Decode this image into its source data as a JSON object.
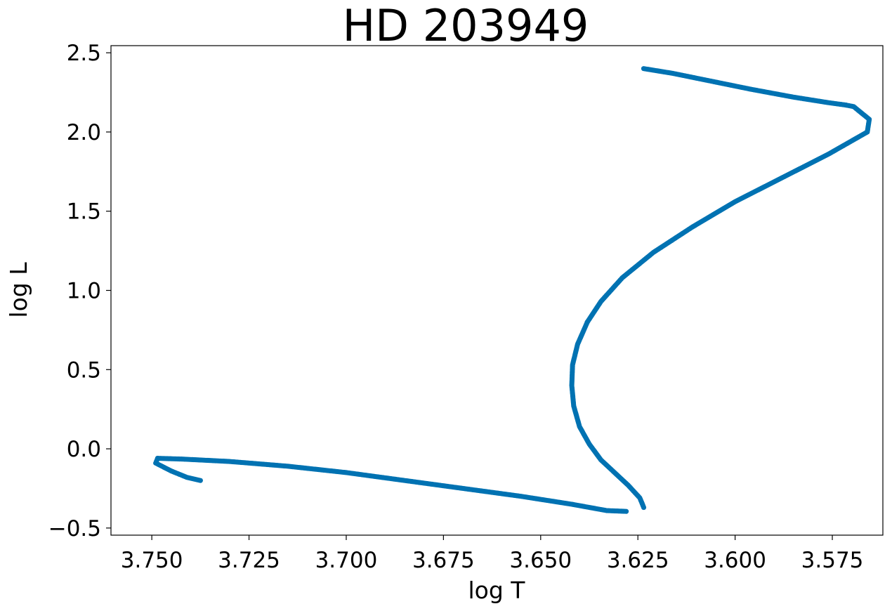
{
  "chart_data": {
    "type": "scatter",
    "title": "HD 203949",
    "xlabel": "log T",
    "ylabel": "log L",
    "xlim": [
      3.7605,
      3.562
    ],
    "ylim": [
      -0.545,
      2.545
    ],
    "x_inverted": true,
    "grid": false,
    "legend": "none",
    "marker_color": "#0072b2",
    "x_ticks": [
      "3.750",
      "3.725",
      "3.700",
      "3.675",
      "3.650",
      "3.625",
      "3.600",
      "3.575"
    ],
    "x_tick_values": [
      3.75,
      3.725,
      3.7,
      3.675,
      3.65,
      3.625,
      3.6,
      3.575
    ],
    "y_ticks": [
      "−0.5",
      "0.0",
      "0.5",
      "1.0",
      "1.5",
      "2.0",
      "2.5"
    ],
    "y_tick_values": [
      -0.5,
      0.0,
      0.5,
      1.0,
      1.5,
      2.0,
      2.5
    ],
    "series": [
      {
        "color": "#0072b2",
        "track_points": [
          [
            3.7375,
            -0.2
          ],
          [
            3.741,
            -0.17
          ],
          [
            3.745,
            -0.13
          ],
          [
            3.748,
            -0.085
          ],
          [
            3.7465,
            -0.06
          ],
          [
            3.742,
            -0.062
          ],
          [
            3.735,
            -0.07
          ],
          [
            3.727,
            -0.085
          ],
          [
            3.717,
            -0.105
          ],
          [
            3.707,
            -0.13
          ],
          [
            3.697,
            -0.16
          ],
          [
            3.687,
            -0.19
          ],
          [
            3.677,
            -0.22
          ],
          [
            3.667,
            -0.255
          ],
          [
            3.657,
            -0.29
          ],
          [
            3.647,
            -0.33
          ],
          [
            3.64,
            -0.36
          ],
          [
            3.633,
            -0.385
          ],
          [
            3.628,
            -0.395
          ],
          [
            3.6235,
            -0.37
          ],
          [
            3.6235,
            -0.32
          ],
          [
            3.626,
            -0.25
          ],
          [
            3.63,
            -0.17
          ],
          [
            3.634,
            -0.08
          ],
          [
            3.637,
            0.02
          ],
          [
            3.639,
            0.12
          ],
          [
            3.6405,
            0.22
          ],
          [
            3.6415,
            0.32
          ],
          [
            3.642,
            0.42
          ],
          [
            3.642,
            0.52
          ],
          [
            3.6415,
            0.62
          ],
          [
            3.6405,
            0.72
          ],
          [
            3.639,
            0.82
          ],
          [
            3.6365,
            0.92
          ],
          [
            3.633,
            1.02
          ],
          [
            3.6285,
            1.12
          ],
          [
            3.623,
            1.22
          ],
          [
            3.617,
            1.32
          ],
          [
            3.61,
            1.42
          ],
          [
            3.6025,
            1.52
          ],
          [
            3.5945,
            1.62
          ],
          [
            3.586,
            1.72
          ],
          [
            3.577,
            1.82
          ],
          [
            3.568,
            1.92
          ],
          [
            3.5645,
            2.0
          ],
          [
            3.567,
            2.06
          ],
          [
            3.569,
            2.12
          ],
          [
            3.57,
            2.165
          ],
          [
            3.574,
            2.18
          ],
          [
            3.58,
            2.2
          ],
          [
            3.588,
            2.235
          ],
          [
            3.596,
            2.27
          ],
          [
            3.604,
            2.31
          ],
          [
            3.612,
            2.35
          ],
          [
            3.619,
            2.38
          ],
          [
            3.625,
            2.4
          ]
        ],
        "values": [
          [
            3.7375,
            -0.2
          ],
          [
            3.741,
            -0.17
          ],
          [
            3.745,
            -0.13
          ],
          [
            3.748,
            -0.085
          ],
          [
            3.7465,
            -0.06
          ],
          [
            3.742,
            -0.062
          ],
          [
            3.735,
            -0.07
          ],
          [
            3.727,
            -0.085
          ],
          [
            3.717,
            -0.105
          ],
          [
            3.707,
            -0.13
          ],
          [
            3.697,
            -0.16
          ],
          [
            3.687,
            -0.19
          ],
          [
            3.677,
            -0.22
          ],
          [
            3.667,
            -0.255
          ],
          [
            3.657,
            -0.29
          ],
          [
            3.647,
            -0.33
          ],
          [
            3.64,
            -0.36
          ],
          [
            3.633,
            -0.385
          ],
          [
            3.628,
            -0.395
          ],
          [
            3.6235,
            -0.37
          ],
          [
            3.6235,
            -0.32
          ],
          [
            3.626,
            -0.25
          ],
          [
            3.63,
            -0.17
          ],
          [
            3.634,
            -0.08
          ],
          [
            3.637,
            0.02
          ],
          [
            3.639,
            0.12
          ],
          [
            3.6405,
            0.22
          ],
          [
            3.6415,
            0.32
          ],
          [
            3.642,
            0.42
          ],
          [
            3.642,
            0.52
          ],
          [
            3.6415,
            0.62
          ],
          [
            3.6405,
            0.72
          ],
          [
            3.639,
            0.82
          ],
          [
            3.6365,
            0.92
          ],
          [
            3.633,
            1.02
          ],
          [
            3.6285,
            1.12
          ],
          [
            3.623,
            1.22
          ],
          [
            3.617,
            1.32
          ],
          [
            3.61,
            1.42
          ],
          [
            3.6025,
            1.52
          ],
          [
            3.5945,
            1.62
          ],
          [
            3.586,
            1.72
          ],
          [
            3.577,
            1.82
          ],
          [
            3.568,
            1.92
          ],
          [
            3.5645,
            2.0
          ],
          [
            3.567,
            2.06
          ],
          [
            3.569,
            2.12
          ],
          [
            3.57,
            2.165
          ],
          [
            3.574,
            2.18
          ],
          [
            3.58,
            2.2
          ],
          [
            3.588,
            2.235
          ],
          [
            3.596,
            2.27
          ],
          [
            3.604,
            2.31
          ],
          [
            3.612,
            2.35
          ],
          [
            3.619,
            2.38
          ],
          [
            3.625,
            2.4
          ]
        ],
        "track_segments": [
          [
            [
              3.7375,
              -0.2
            ],
            [
              3.741,
              -0.18
            ],
            [
              3.745,
              -0.14
            ],
            [
              3.749,
              -0.09
            ],
            [
              3.7485,
              -0.06
            ]
          ],
          [
            [
              3.7485,
              -0.06
            ],
            [
              3.742,
              -0.065
            ],
            [
              3.73,
              -0.08
            ],
            [
              3.715,
              -0.11
            ],
            [
              3.7,
              -0.15
            ],
            [
              3.685,
              -0.2
            ],
            [
              3.67,
              -0.25
            ],
            [
              3.655,
              -0.3
            ],
            [
              3.642,
              -0.35
            ],
            [
              3.633,
              -0.39
            ],
            [
              3.628,
              -0.395
            ]
          ],
          [
            [
              3.6235,
              -0.37
            ],
            [
              3.6245,
              -0.31
            ],
            [
              3.6275,
              -0.23
            ],
            [
              3.631,
              -0.15
            ],
            [
              3.6345,
              -0.07
            ],
            [
              3.6375,
              0.03
            ],
            [
              3.64,
              0.14
            ],
            [
              3.6415,
              0.27
            ],
            [
              3.642,
              0.4
            ],
            [
              3.6418,
              0.53
            ],
            [
              3.6405,
              0.66
            ],
            [
              3.638,
              0.8
            ]
          ],
          [
            [
              3.638,
              0.8
            ],
            [
              3.6345,
              0.93
            ],
            [
              3.629,
              1.08
            ],
            [
              3.621,
              1.24
            ],
            [
              3.611,
              1.4
            ],
            [
              3.6,
              1.56
            ],
            [
              3.588,
              1.71
            ],
            [
              3.576,
              1.86
            ],
            [
              3.566,
              2.0
            ],
            [
              3.5655,
              2.08
            ],
            [
              3.5695,
              2.16
            ],
            [
              3.5715,
              2.17
            ]
          ],
          [
            [
              3.5715,
              2.17
            ],
            [
              3.576,
              2.185
            ],
            [
              3.585,
              2.22
            ],
            [
              3.596,
              2.27
            ],
            [
              3.607,
              2.325
            ],
            [
              3.616,
              2.37
            ],
            [
              3.6235,
              2.4
            ]
          ]
        ]
      },
      {
        "color": "#0072b2",
        "values": []
      }
    ]
  }
}
